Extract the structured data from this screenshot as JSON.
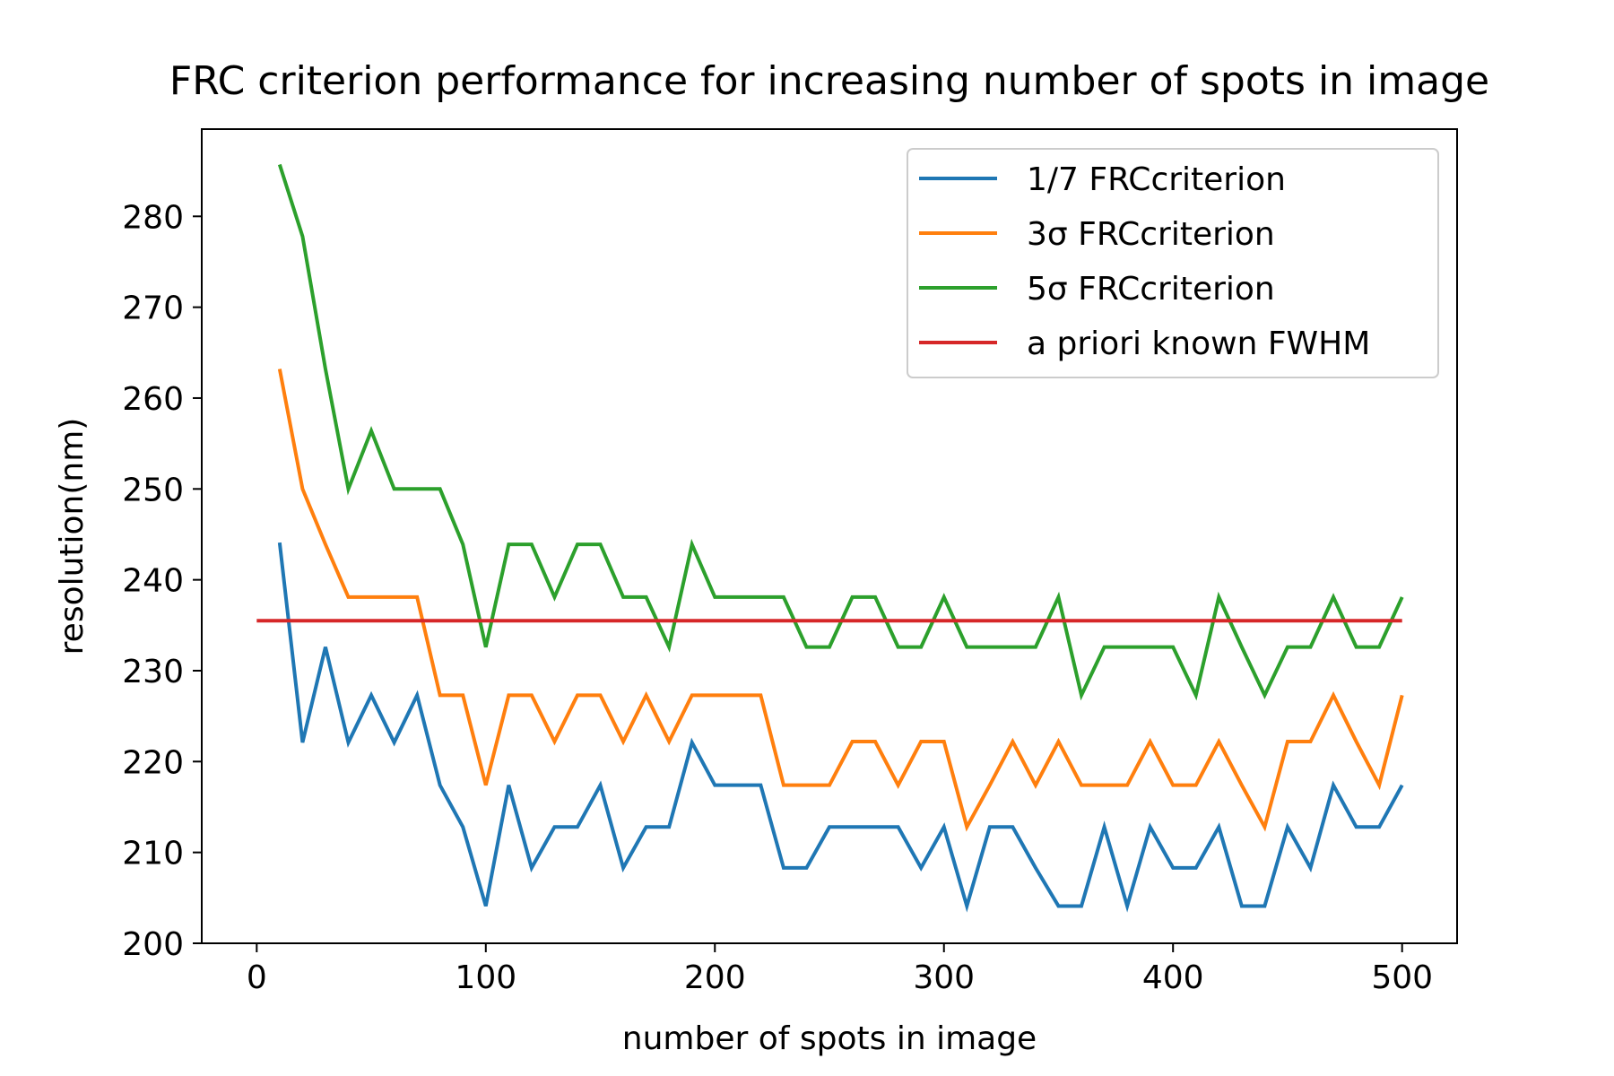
{
  "chart_data": {
    "type": "line",
    "title": "FRC criterion performance for increasing number of spots in image",
    "xlabel": "number of spots in image",
    "ylabel": "resolution(nm)",
    "xlim": [
      -24,
      524
    ],
    "ylim": [
      200,
      289.6
    ],
    "xticks": [
      0,
      100,
      200,
      300,
      400,
      500
    ],
    "xtick_labels": [
      "0",
      "100",
      "200",
      "300",
      "400",
      "500"
    ],
    "yticks": [
      200,
      210,
      220,
      230,
      240,
      250,
      260,
      270,
      280
    ],
    "ytick_labels": [
      "200",
      "210",
      "220",
      "230",
      "240",
      "250",
      "260",
      "270",
      "280"
    ],
    "grid": false,
    "legend_position": "top-right",
    "x": [
      10,
      20,
      30,
      40,
      50,
      60,
      70,
      80,
      90,
      100,
      110,
      120,
      130,
      140,
      150,
      160,
      170,
      180,
      190,
      200,
      210,
      220,
      230,
      240,
      250,
      260,
      270,
      280,
      290,
      300,
      310,
      320,
      330,
      340,
      350,
      360,
      370,
      380,
      390,
      400,
      410,
      420,
      430,
      440,
      450,
      460,
      470,
      480,
      490,
      500
    ],
    "series": [
      {
        "name": "1/7 FRCcriterion",
        "color": "#1f77b4",
        "values": [
          244.1,
          222.1,
          232.6,
          222.1,
          227.3,
          222.1,
          227.3,
          217.4,
          212.8,
          204.1,
          217.4,
          208.3,
          212.8,
          212.8,
          217.4,
          208.3,
          212.8,
          212.8,
          222.1,
          217.4,
          217.4,
          217.4,
          208.3,
          208.3,
          212.8,
          212.8,
          212.8,
          212.8,
          208.3,
          212.8,
          204.1,
          212.8,
          212.8,
          208.3,
          204.1,
          204.1,
          212.8,
          204.1,
          212.8,
          208.3,
          208.3,
          212.8,
          204.1,
          204.1,
          212.8,
          208.3,
          217.4,
          212.8,
          212.8,
          217.4
        ]
      },
      {
        "name": "3σ FRCcriterion",
        "color": "#ff7f0e",
        "values": [
          263.2,
          250.0,
          243.9,
          238.1,
          238.1,
          238.1,
          238.1,
          227.3,
          227.3,
          217.4,
          227.3,
          227.3,
          222.2,
          227.3,
          227.3,
          222.2,
          227.3,
          222.2,
          227.3,
          227.3,
          227.3,
          227.3,
          217.4,
          217.4,
          217.4,
          222.2,
          222.2,
          217.4,
          222.2,
          222.2,
          212.8,
          217.4,
          222.2,
          217.4,
          222.2,
          217.4,
          217.4,
          217.4,
          222.2,
          217.4,
          217.4,
          222.2,
          217.4,
          212.8,
          222.2,
          222.2,
          227.3,
          222.2,
          217.4,
          227.3
        ]
      },
      {
        "name": "5σ FRCcriterion",
        "color": "#2ca02c",
        "values": [
          285.7,
          277.8,
          263.2,
          250.0,
          256.4,
          250.0,
          250.0,
          250.0,
          243.9,
          232.6,
          243.9,
          243.9,
          238.1,
          243.9,
          243.9,
          238.1,
          238.1,
          232.6,
          243.9,
          238.1,
          238.1,
          238.1,
          238.1,
          232.6,
          232.6,
          238.1,
          238.1,
          232.6,
          232.6,
          238.1,
          232.6,
          232.6,
          232.6,
          232.6,
          238.1,
          227.3,
          232.6,
          232.6,
          232.6,
          232.6,
          227.3,
          238.1,
          232.6,
          227.3,
          232.6,
          232.6,
          238.1,
          232.6,
          232.6,
          238.1
        ]
      },
      {
        "name": "a priori known FWHM",
        "color": "#d62728",
        "x_range": [
          0,
          500
        ],
        "value": 235.5
      }
    ]
  }
}
